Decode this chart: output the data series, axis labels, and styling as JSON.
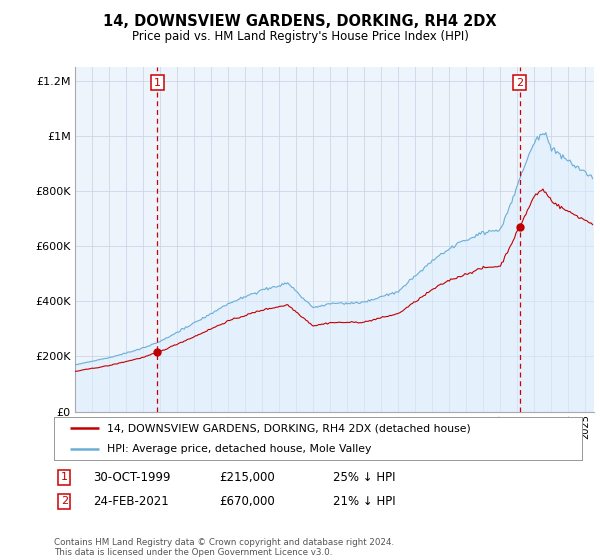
{
  "title": "14, DOWNSVIEW GARDENS, DORKING, RH4 2DX",
  "subtitle": "Price paid vs. HM Land Registry's House Price Index (HPI)",
  "legend_line1": "14, DOWNSVIEW GARDENS, DORKING, RH4 2DX (detached house)",
  "legend_line2": "HPI: Average price, detached house, Mole Valley",
  "annotation1_label": "1",
  "annotation1_date": "30-OCT-1999",
  "annotation1_price": "£215,000",
  "annotation1_hpi": "25% ↓ HPI",
  "annotation2_label": "2",
  "annotation2_date": "24-FEB-2021",
  "annotation2_price": "£670,000",
  "annotation2_hpi": "21% ↓ HPI",
  "footer": "Contains HM Land Registry data © Crown copyright and database right 2024.\nThis data is licensed under the Open Government Licence v3.0.",
  "hpi_color": "#6aaed6",
  "hpi_fill_color": "#ddeeff",
  "price_color": "#c00000",
  "vline_color": "#cc0000",
  "background_color": "#ffffff",
  "chart_bg_color": "#eef4fb",
  "grid_color": "#c8d8e8",
  "ylim": [
    0,
    1250000
  ],
  "xlim_start": 1995.0,
  "xlim_end": 2025.5,
  "t1": 1999.833,
  "t2": 2021.125,
  "sale1_price": 215000,
  "sale2_price": 670000
}
